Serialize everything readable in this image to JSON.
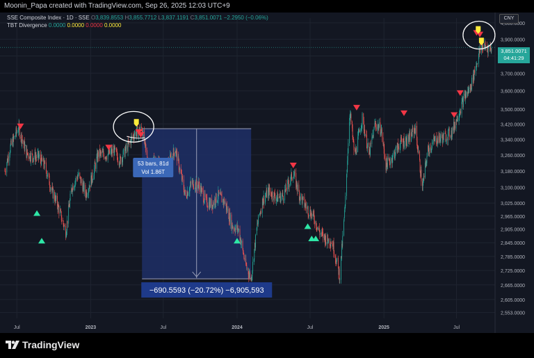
{
  "header": {
    "text": "Moonin_Papa created with TradingView.com, Sep 26, 2025 12:03 UTC+9"
  },
  "legend": {
    "symbol": "SSE Composite Index · 1D · SSE",
    "o_label": "O",
    "o": "3,839.8553",
    "h_label": "H",
    "h": "3,855.7712",
    "l_label": "L",
    "l": "3,837.1191",
    "c_label": "C",
    "c": "3,851.0071",
    "change": "−2.2950 (−0.06%)",
    "indicator": "TBT Divergence",
    "ind_values": [
      "0.0000",
      "0.0000",
      "0.0000",
      "0.0000"
    ]
  },
  "currency": "CNY",
  "price_tag": {
    "price": "3,851.0071",
    "countdown": "04:41:29"
  },
  "measure": {
    "bars_label": "53 bars, 81d",
    "vol_label": "Vol 1.86T",
    "result_label": "−690.5593 (−20.72%) −6,905,593"
  },
  "colors": {
    "up": "#26a69a",
    "down": "#ef5350",
    "background": "#131722",
    "marker_down": "#f23645",
    "marker_up": "#2ee6a6",
    "marker_yellow": "#ffeb3b",
    "measure_fill": "#1e2f66"
  },
  "footer": {
    "brand": "TradingView"
  },
  "chart_data": {
    "type": "candlestick",
    "title": "SSE Composite Index · 1D · SSE",
    "y_axis_ticks": [
      "4,000.0000",
      "3,900.0000",
      "3,800.0000",
      "3,700.0000",
      "3,600.0000",
      "3,500.0000",
      "3,420.0000",
      "3,340.0000",
      "3,260.0000",
      "3,180.0000",
      "3,100.0000",
      "3,025.0000",
      "2,965.0000",
      "2,905.0000",
      "2,845.0000",
      "2,785.0000",
      "2,725.0000",
      "2,665.0000",
      "2,605.0000",
      "2,553.0000"
    ],
    "x_axis_ticks": [
      "Jul",
      "2023",
      "Jul",
      "2024",
      "Jul",
      "2025",
      "Jul"
    ],
    "ylim": [
      2530,
      4030
    ],
    "scale": "log",
    "close_series": [
      [
        "2022-06-01",
        3180
      ],
      [
        "2022-06-15",
        3300
      ],
      [
        "2022-07-05",
        3400
      ],
      [
        "2022-07-25",
        3270
      ],
      [
        "2022-08-10",
        3250
      ],
      [
        "2022-08-25",
        3250
      ],
      [
        "2022-09-10",
        3200
      ],
      [
        "2022-09-25",
        3090
      ],
      [
        "2022-10-10",
        3020
      ],
      [
        "2022-10-31",
        2893
      ],
      [
        "2022-11-15",
        3100
      ],
      [
        "2022-12-01",
        3160
      ],
      [
        "2022-12-20",
        3070
      ],
      [
        "2023-01-05",
        3150
      ],
      [
        "2023-01-20",
        3265
      ],
      [
        "2023-02-10",
        3260
      ],
      [
        "2023-02-28",
        3280
      ],
      [
        "2023-03-15",
        3230
      ],
      [
        "2023-04-05",
        3310
      ],
      [
        "2023-04-20",
        3370
      ],
      [
        "2023-05-09",
        3395
      ],
      [
        "2023-05-25",
        3200
      ],
      [
        "2023-06-10",
        3230
      ],
      [
        "2023-06-28",
        3190
      ],
      [
        "2023-07-10",
        3200
      ],
      [
        "2023-07-31",
        3290
      ],
      [
        "2023-08-15",
        3150
      ],
      [
        "2023-08-25",
        3060
      ],
      [
        "2023-09-10",
        3120
      ],
      [
        "2023-09-28",
        3110
      ],
      [
        "2023-10-15",
        3030
      ],
      [
        "2023-10-30",
        3020
      ],
      [
        "2023-11-15",
        3060
      ],
      [
        "2023-12-01",
        3030
      ],
      [
        "2023-12-20",
        2920
      ],
      [
        "2024-01-05",
        2900
      ],
      [
        "2024-01-22",
        2750
      ],
      [
        "2024-02-05",
        2690
      ],
      [
        "2024-02-20",
        2920
      ],
      [
        "2024-03-05",
        3040
      ],
      [
        "2024-03-20",
        3080
      ],
      [
        "2024-04-10",
        3050
      ],
      [
        "2024-04-25",
        3060
      ],
      [
        "2024-05-20",
        3170
      ],
      [
        "2024-06-05",
        3060
      ],
      [
        "2024-06-20",
        3010
      ],
      [
        "2024-07-10",
        2960
      ],
      [
        "2024-07-25",
        2890
      ],
      [
        "2024-08-10",
        2860
      ],
      [
        "2024-08-25",
        2850
      ],
      [
        "2024-09-13",
        2700
      ],
      [
        "2024-09-26",
        3000
      ],
      [
        "2024-10-08",
        3489
      ],
      [
        "2024-10-20",
        3250
      ],
      [
        "2024-11-08",
        3450
      ],
      [
        "2024-11-25",
        3260
      ],
      [
        "2024-12-10",
        3420
      ],
      [
        "2024-12-25",
        3390
      ],
      [
        "2025-01-06",
        3210
      ],
      [
        "2025-01-20",
        3240
      ],
      [
        "2025-02-10",
        3320
      ],
      [
        "2025-03-05",
        3340
      ],
      [
        "2025-03-20",
        3400
      ],
      [
        "2025-04-07",
        3096
      ],
      [
        "2025-04-20",
        3280
      ],
      [
        "2025-05-10",
        3340
      ],
      [
        "2025-06-01",
        3350
      ],
      [
        "2025-06-20",
        3380
      ],
      [
        "2025-07-05",
        3470
      ],
      [
        "2025-07-20",
        3560
      ],
      [
        "2025-08-05",
        3620
      ],
      [
        "2025-08-20",
        3760
      ],
      [
        "2025-09-01",
        3860
      ],
      [
        "2025-09-15",
        3850
      ],
      [
        "2025-09-26",
        3851
      ]
    ],
    "markers_down": [
      [
        "2022-07-10",
        3400
      ],
      [
        "2023-02-15",
        3290
      ],
      [
        "2023-05-01",
        3370
      ],
      [
        "2023-05-06",
        3355
      ],
      [
        "2024-05-20",
        3200
      ],
      [
        "2024-10-25",
        3500
      ],
      [
        "2025-02-20",
        3470
      ],
      [
        "2025-06-25",
        3460
      ],
      [
        "2025-07-10",
        3580
      ],
      [
        "2025-08-20",
        3930
      ],
      [
        "2025-08-28",
        3920
      ]
    ],
    "markers_up": [
      [
        "2022-08-20",
        2985
      ],
      [
        "2022-09-01",
        2860
      ],
      [
        "2023-06-05",
        3195
      ],
      [
        "2024-01-01",
        2860
      ],
      [
        "2024-06-25",
        2925
      ],
      [
        "2024-07-05",
        2870
      ],
      [
        "2024-07-15",
        2870
      ]
    ],
    "markers_yellow": [
      [
        "2023-04-25",
        3420
      ],
      [
        "2025-08-24",
        3950
      ],
      [
        "2025-09-01",
        3880
      ]
    ],
    "measure_range": {
      "start": "2023-05-09",
      "end": "2024-02-05",
      "high": 3395,
      "low": 2690
    }
  }
}
